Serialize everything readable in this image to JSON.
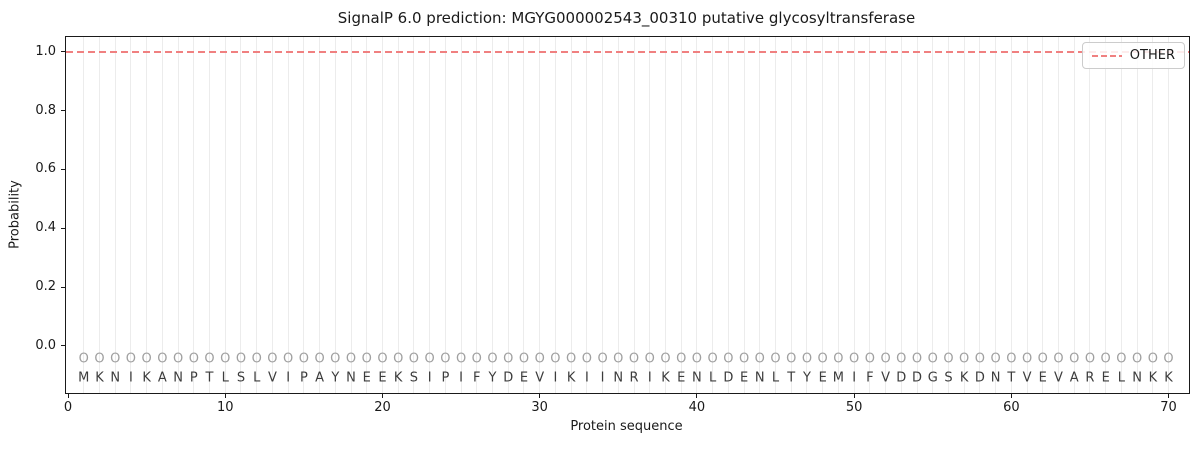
{
  "figure": {
    "kind": "SignalP 6.0 prediction plot"
  },
  "chart_data": {
    "type": "line",
    "title": "SignalP 6.0 prediction: MGYG000002543_00310 putative glycosyltransferase",
    "xlabel": "Protein sequence",
    "ylabel": "Probability",
    "xlim": [
      -0.13,
      71.3
    ],
    "ylim": [
      -0.16,
      1.05
    ],
    "x_ticks": [
      0,
      10,
      20,
      30,
      40,
      50,
      60,
      70
    ],
    "y_ticks": [
      0.0,
      0.2,
      0.4,
      0.6,
      0.8,
      1.0
    ],
    "grid": {
      "vertical_line_per_residue": true,
      "color": "#ececec"
    },
    "series": [
      {
        "name": "OTHER",
        "color": "#f08080",
        "linestyle": "dashed",
        "y_constant": 1.0,
        "x_range": [
          1,
          70
        ]
      }
    ],
    "legend": {
      "position": "upper-right",
      "entries": [
        {
          "label": "OTHER",
          "color": "#f08080",
          "linestyle": "dashed"
        }
      ]
    },
    "sequence": "MKNIKANPTLSLVIPAYNEEKSIPIFYDEVIKIINRIKENLDENLTYEMIFVDDGSKDNTVEVARELNKK",
    "sequence_marker_char": "O",
    "sequence_marker_y": -0.044,
    "sequence_letter_y": -0.109
  }
}
